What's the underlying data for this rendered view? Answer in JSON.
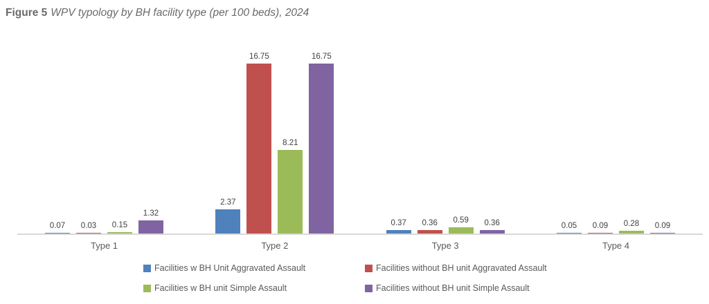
{
  "title": {
    "prefix": "Figure 5",
    "subtitle": "WPV typology by BH facility type (per 100 beds), 2024"
  },
  "colors": {
    "background": "#ffffff",
    "title_text": "#6a6a6a",
    "value_label": "#404040",
    "category_label": "#595959",
    "legend_text": "#595959",
    "axis_line": "#d9d9d9"
  },
  "chart_data": {
    "type": "bar",
    "title": "Figure 5 WPV typology by BH facility type (per 100 beds), 2024",
    "categories": [
      "Type 1",
      "Type 2",
      "Type 3",
      "Type 4"
    ],
    "series": [
      {
        "name": "Facilities w BH Unit Aggravated Assault",
        "color": "#4f81bd",
        "values": [
          0.07,
          2.37,
          0.37,
          0.05
        ]
      },
      {
        "name": "Facilities without BH unit Aggravated Assault",
        "color": "#c0504d",
        "values": [
          0.03,
          16.75,
          0.36,
          0.09
        ]
      },
      {
        "name": "Facilities w BH unit Simple Assault",
        "color": "#9bbb59",
        "values": [
          0.15,
          8.21,
          0.59,
          0.28
        ]
      },
      {
        "name": "Facilities without BH unit Simple Assault",
        "color": "#8064a2",
        "values": [
          1.32,
          16.75,
          0.36,
          0.09
        ]
      }
    ],
    "ylim": [
      0,
      17.5
    ],
    "xlabel": "",
    "ylabel": "",
    "grid": false,
    "y_axis_visible": false,
    "data_labels": true,
    "data_label_format": "0.00",
    "legend_position": "bottom"
  }
}
